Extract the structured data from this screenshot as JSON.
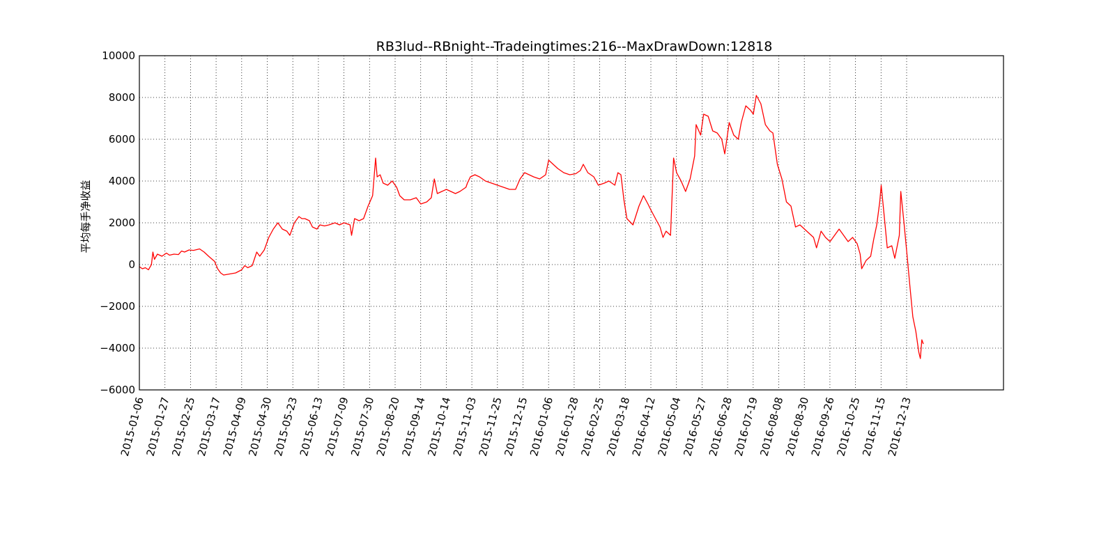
{
  "chart_data": {
    "type": "line",
    "title": "RB3lud--RBnight--Tradeingtimes:216--MaxDrawDown:12818",
    "xlabel": "",
    "ylabel": "平均每手净收益",
    "ylim": [
      -6000,
      10000
    ],
    "yticks": [
      -6000,
      -4000,
      -2000,
      0,
      2000,
      4000,
      6000,
      8000,
      10000
    ],
    "ytick_labels": [
      "−6000",
      "−4000",
      "−2000",
      "0",
      "2000",
      "4000",
      "6000",
      "8000",
      "10000"
    ],
    "x_tick_labels": [
      "2015-01-06",
      "2015-01-27",
      "2015-02-25",
      "2015-03-17",
      "2015-04-09",
      "2015-04-30",
      "2015-05-23",
      "2015-06-13",
      "2015-07-09",
      "2015-07-30",
      "2015-08-20",
      "2015-09-14",
      "2015-10-14",
      "2015-11-03",
      "2015-11-25",
      "2015-12-15",
      "2016-01-06",
      "2016-01-28",
      "2016-02-25",
      "2016-03-18",
      "2016-04-12",
      "2016-05-04",
      "2016-05-27",
      "2016-06-28",
      "2016-07-19",
      "2016-08-08",
      "2016-08-30",
      "2016-09-26",
      "2016-10-25",
      "2016-11-15",
      "2016-12-13"
    ],
    "grid": true,
    "series": [
      {
        "color": "#ff0000",
        "points": [
          [
            0,
            -100
          ],
          [
            0.2,
            -200
          ],
          [
            0.4,
            -150
          ],
          [
            0.6,
            -250
          ],
          [
            0.8,
            0
          ],
          [
            0.9,
            600
          ],
          [
            1.0,
            250
          ],
          [
            1.2,
            500
          ],
          [
            1.5,
            400
          ],
          [
            1.8,
            550
          ],
          [
            2.0,
            450
          ],
          [
            2.3,
            500
          ],
          [
            2.6,
            480
          ],
          [
            2.8,
            650
          ],
          [
            3.0,
            600
          ],
          [
            3.3,
            700
          ],
          [
            3.6,
            680
          ],
          [
            4.0,
            750
          ],
          [
            4.3,
            600
          ],
          [
            4.6,
            400
          ],
          [
            5.0,
            150
          ],
          [
            5.2,
            -200
          ],
          [
            5.4,
            -400
          ],
          [
            5.6,
            -500
          ],
          [
            6.0,
            -450
          ],
          [
            6.4,
            -400
          ],
          [
            6.8,
            -250
          ],
          [
            7.0,
            -50
          ],
          [
            7.2,
            -150
          ],
          [
            7.5,
            -50
          ],
          [
            7.8,
            600
          ],
          [
            8.0,
            400
          ],
          [
            8.3,
            700
          ],
          [
            8.6,
            1300
          ],
          [
            8.9,
            1700
          ],
          [
            9.2,
            2000
          ],
          [
            9.5,
            1700
          ],
          [
            9.8,
            1600
          ],
          [
            10.0,
            1400
          ],
          [
            10.3,
            2000
          ],
          [
            10.6,
            2300
          ],
          [
            10.8,
            2200
          ],
          [
            11.0,
            2200
          ],
          [
            11.3,
            2100
          ],
          [
            11.5,
            1800
          ],
          [
            11.8,
            1700
          ],
          [
            12.0,
            1900
          ],
          [
            12.3,
            1850
          ],
          [
            12.6,
            1900
          ],
          [
            13.0,
            2000
          ],
          [
            13.3,
            1900
          ],
          [
            13.6,
            2000
          ],
          [
            14.0,
            1900
          ],
          [
            14.1,
            1400
          ],
          [
            14.3,
            2200
          ],
          [
            14.6,
            2100
          ],
          [
            14.9,
            2200
          ],
          [
            15.2,
            2800
          ],
          [
            15.5,
            3300
          ],
          [
            15.7,
            5100
          ],
          [
            15.8,
            4200
          ],
          [
            16.0,
            4300
          ],
          [
            16.2,
            3900
          ],
          [
            16.5,
            3800
          ],
          [
            16.8,
            4000
          ],
          [
            17.1,
            3700
          ],
          [
            17.3,
            3300
          ],
          [
            17.6,
            3100
          ],
          [
            18.0,
            3100
          ],
          [
            18.4,
            3200
          ],
          [
            18.7,
            2900
          ],
          [
            19.1,
            3000
          ],
          [
            19.4,
            3200
          ],
          [
            19.6,
            4100
          ],
          [
            19.8,
            3400
          ],
          [
            20.1,
            3500
          ],
          [
            20.4,
            3600
          ],
          [
            20.7,
            3500
          ],
          [
            21.0,
            3400
          ],
          [
            21.3,
            3500
          ],
          [
            21.7,
            3700
          ],
          [
            21.8,
            3900
          ],
          [
            22.0,
            4200
          ],
          [
            22.3,
            4300
          ],
          [
            22.6,
            4200
          ],
          [
            23.0,
            4000
          ],
          [
            23.4,
            3900
          ],
          [
            23.8,
            3800
          ],
          [
            24.2,
            3700
          ],
          [
            24.6,
            3600
          ],
          [
            25.0,
            3600
          ],
          [
            25.3,
            4100
          ],
          [
            25.6,
            4400
          ],
          [
            25.9,
            4300
          ],
          [
            26.2,
            4200
          ],
          [
            26.6,
            4100
          ],
          [
            27.0,
            4300
          ],
          [
            27.2,
            5000
          ],
          [
            27.5,
            4800
          ],
          [
            27.8,
            4600
          ],
          [
            28.2,
            4400
          ],
          [
            28.6,
            4300
          ],
          [
            29.0,
            4350
          ],
          [
            29.3,
            4500
          ],
          [
            29.5,
            4800
          ],
          [
            29.8,
            4400
          ],
          [
            30.2,
            4200
          ],
          [
            30.5,
            3800
          ],
          [
            30.9,
            3900
          ],
          [
            31.2,
            4000
          ],
          [
            31.6,
            3800
          ],
          [
            31.8,
            4400
          ],
          [
            32.0,
            4300
          ],
          [
            32.2,
            3100
          ],
          [
            32.4,
            2200
          ],
          [
            32.8,
            1900
          ],
          [
            33.2,
            2800
          ],
          [
            33.5,
            3300
          ],
          [
            33.8,
            2900
          ],
          [
            34.0,
            2600
          ],
          [
            34.3,
            2200
          ],
          [
            34.6,
            1800
          ],
          [
            34.8,
            1300
          ],
          [
            35.0,
            1600
          ],
          [
            35.3,
            1400
          ],
          [
            35.5,
            5100
          ],
          [
            35.7,
            4400
          ],
          [
            36.0,
            4000
          ],
          [
            36.3,
            3500
          ],
          [
            36.6,
            4100
          ],
          [
            36.9,
            5200
          ],
          [
            37.0,
            6700
          ],
          [
            37.3,
            6200
          ],
          [
            37.5,
            7200
          ],
          [
            37.8,
            7100
          ],
          [
            38.1,
            6400
          ],
          [
            38.4,
            6300
          ],
          [
            38.7,
            6000
          ],
          [
            38.9,
            5300
          ],
          [
            39.2,
            6800
          ],
          [
            39.5,
            6200
          ],
          [
            39.8,
            6000
          ],
          [
            40.0,
            6800
          ],
          [
            40.3,
            7600
          ],
          [
            40.6,
            7400
          ],
          [
            40.8,
            7200
          ],
          [
            41.0,
            8100
          ],
          [
            41.3,
            7700
          ],
          [
            41.6,
            6700
          ],
          [
            41.9,
            6400
          ],
          [
            42.1,
            6300
          ],
          [
            42.4,
            4800
          ],
          [
            42.7,
            4100
          ],
          [
            43.0,
            3000
          ],
          [
            43.3,
            2800
          ],
          [
            43.6,
            1800
          ],
          [
            43.9,
            1900
          ],
          [
            44.2,
            1700
          ],
          [
            44.5,
            1500
          ],
          [
            44.8,
            1300
          ],
          [
            45.0,
            800
          ],
          [
            45.3,
            1600
          ],
          [
            45.6,
            1300
          ],
          [
            45.9,
            1100
          ],
          [
            46.2,
            1400
          ],
          [
            46.5,
            1700
          ],
          [
            46.8,
            1400
          ],
          [
            47.1,
            1100
          ],
          [
            47.4,
            1300
          ],
          [
            47.7,
            1000
          ],
          [
            47.9,
            500
          ],
          [
            48.0,
            -200
          ],
          [
            48.3,
            200
          ],
          [
            48.6,
            400
          ],
          [
            48.8,
            1200
          ],
          [
            49.0,
            1900
          ],
          [
            49.2,
            3000
          ],
          [
            49.3,
            3800
          ],
          [
            49.5,
            2300
          ],
          [
            49.7,
            800
          ],
          [
            50.0,
            900
          ],
          [
            50.2,
            300
          ],
          [
            50.5,
            1400
          ],
          [
            50.6,
            3500
          ],
          [
            50.8,
            2100
          ],
          [
            51.0,
            600
          ],
          [
            51.2,
            -1000
          ],
          [
            51.4,
            -2500
          ],
          [
            51.6,
            -3200
          ],
          [
            51.8,
            -4200
          ],
          [
            51.9,
            -4500
          ],
          [
            52.0,
            -3600
          ],
          [
            52.1,
            -3800
          ]
        ]
      }
    ]
  }
}
